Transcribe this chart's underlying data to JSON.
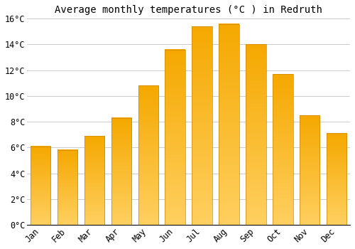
{
  "title": "Average monthly temperatures (°C ) in Redruth",
  "months": [
    "Jan",
    "Feb",
    "Mar",
    "Apr",
    "May",
    "Jun",
    "Jul",
    "Aug",
    "Sep",
    "Oct",
    "Nov",
    "Dec"
  ],
  "values": [
    6.1,
    5.8,
    6.9,
    8.3,
    10.8,
    13.6,
    15.4,
    15.6,
    14.0,
    11.7,
    8.5,
    7.1
  ],
  "bar_color_top": "#F5A800",
  "bar_color_bottom": "#FFD060",
  "bar_edge_color": "#CC8800",
  "ylim": [
    0,
    16
  ],
  "yticks": [
    0,
    2,
    4,
    6,
    8,
    10,
    12,
    14,
    16
  ],
  "background_color": "#FFFFFF",
  "grid_color": "#CCCCCC",
  "title_fontsize": 10,
  "tick_fontsize": 8.5,
  "bar_width": 0.75
}
